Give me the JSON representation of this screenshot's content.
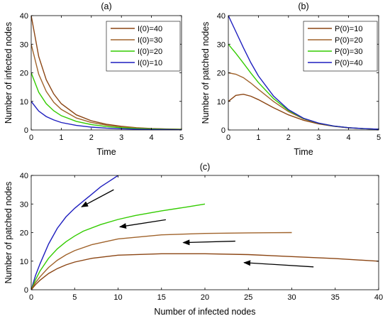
{
  "chart_data": [
    {
      "panel": "(a)",
      "type": "line",
      "xlabel": "Time",
      "ylabel": "Number of infected nodes",
      "xlim": [
        0,
        5
      ],
      "ylim": [
        0,
        40
      ],
      "xticks": [
        "0",
        "1",
        "2",
        "3",
        "4",
        "5"
      ],
      "yticks": [
        "0",
        "10",
        "20",
        "30",
        "40"
      ],
      "legend_position": "top-right",
      "grid": false,
      "series": [
        {
          "name": "I(0)=40",
          "color": "#8B4513",
          "x": [
            0,
            0.25,
            0.5,
            0.75,
            1,
            1.5,
            2,
            2.5,
            3,
            3.5,
            4,
            4.5,
            5
          ],
          "y": [
            40,
            25.7,
            17.6,
            12.6,
            9.2,
            5.3,
            3.2,
            2.0,
            1.3,
            0.8,
            0.5,
            0.35,
            0.25
          ]
        },
        {
          "name": "I(0)=30",
          "color": "#A0632B",
          "x": [
            0,
            0.25,
            0.5,
            0.75,
            1,
            1.5,
            2,
            2.5,
            3,
            3.5,
            4,
            4.5,
            5
          ],
          "y": [
            30,
            19.5,
            13.5,
            9.7,
            7.2,
            4.2,
            2.6,
            1.7,
            1.1,
            0.7,
            0.45,
            0.3,
            0.2
          ]
        },
        {
          "name": "I(0)=20",
          "color": "#33CC00",
          "x": [
            0,
            0.25,
            0.5,
            0.75,
            1,
            1.5,
            2,
            2.5,
            3,
            3.5,
            4,
            4.5,
            5
          ],
          "y": [
            20,
            13.2,
            9.2,
            6.7,
            5.0,
            3.0,
            1.9,
            1.2,
            0.8,
            0.5,
            0.35,
            0.22,
            0.15
          ]
        },
        {
          "name": "I(0)=10",
          "color": "#1F1FBF",
          "x": [
            0,
            0.25,
            0.5,
            0.75,
            1,
            1.5,
            2,
            2.5,
            3,
            3.5,
            4,
            4.5,
            5
          ],
          "y": [
            10,
            6.6,
            4.7,
            3.5,
            2.6,
            1.6,
            1.0,
            0.65,
            0.42,
            0.28,
            0.18,
            0.12,
            0.08
          ]
        }
      ]
    },
    {
      "panel": "(b)",
      "type": "line",
      "xlabel": "Time",
      "ylabel": "Number of patched nodes",
      "xlim": [
        0,
        5
      ],
      "ylim": [
        0,
        40
      ],
      "xticks": [
        "0",
        "1",
        "2",
        "3",
        "4",
        "5"
      ],
      "yticks": [
        "0",
        "10",
        "20",
        "30",
        "40"
      ],
      "legend_position": "top-right",
      "grid": false,
      "series": [
        {
          "name": "P(0)=10",
          "color": "#8B4513",
          "x": [
            0,
            0.25,
            0.5,
            0.75,
            1,
            1.5,
            2,
            2.5,
            3,
            3.5,
            4,
            4.5,
            5
          ],
          "y": [
            10,
            12.1,
            12.5,
            11.8,
            10.6,
            7.8,
            5.3,
            3.4,
            2.1,
            1.3,
            0.75,
            0.45,
            0.25
          ]
        },
        {
          "name": "P(0)=20",
          "color": "#A0632B",
          "x": [
            0,
            0.25,
            0.5,
            0.75,
            1,
            1.5,
            2,
            2.5,
            3,
            3.5,
            4,
            4.5,
            5
          ],
          "y": [
            20,
            19.5,
            18.3,
            16.4,
            14.2,
            10.0,
            6.4,
            3.9,
            2.3,
            1.35,
            0.78,
            0.45,
            0.25
          ]
        },
        {
          "name": "P(0)=30",
          "color": "#33CC00",
          "x": [
            0,
            0.25,
            0.5,
            0.75,
            1,
            1.5,
            2,
            2.5,
            3,
            3.5,
            4,
            4.5,
            5
          ],
          "y": [
            30,
            26.8,
            23.4,
            19.9,
            16.6,
            11.0,
            6.8,
            4.0,
            2.35,
            1.37,
            0.79,
            0.45,
            0.25
          ]
        },
        {
          "name": "P(0)=40",
          "color": "#1F1FBF",
          "x": [
            0,
            0.25,
            0.5,
            0.75,
            1,
            1.5,
            2,
            2.5,
            3,
            3.5,
            4,
            4.5,
            5
          ],
          "y": [
            40,
            34.4,
            28.8,
            23.5,
            18.9,
            11.9,
            7.1,
            4.1,
            2.4,
            1.38,
            0.8,
            0.46,
            0.26
          ]
        }
      ]
    },
    {
      "panel": "(c)",
      "type": "line",
      "xlabel": "Number of infected nodes",
      "ylabel": "Number of patched nodes",
      "xlim": [
        0,
        40
      ],
      "ylim": [
        0,
        40
      ],
      "xticks": [
        "0",
        "5",
        "10",
        "15",
        "20",
        "25",
        "30",
        "35",
        "40"
      ],
      "yticks": [
        "0",
        "10",
        "20",
        "30",
        "40"
      ],
      "grid": false,
      "series": [
        {
          "color": "#1F1FBF",
          "x": [
            0,
            0.5,
            1,
            2,
            3,
            4,
            5,
            6,
            7,
            8,
            9,
            10
          ],
          "y": [
            0,
            5,
            9,
            16,
            21.5,
            25.5,
            28.5,
            31,
            33.5,
            36,
            38,
            40
          ]
        },
        {
          "color": "#33CC00",
          "x": [
            0,
            0.5,
            1,
            2,
            3,
            4,
            5,
            6,
            8,
            10,
            12,
            15,
            18,
            20
          ],
          "y": [
            0,
            3.5,
            6.5,
            11,
            14.3,
            16.8,
            18.8,
            20.5,
            22.8,
            24.6,
            26,
            27.6,
            29,
            30
          ]
        },
        {
          "color": "#A0632B",
          "x": [
            0,
            0.5,
            1,
            2,
            3,
            4,
            5,
            7,
            10,
            15,
            20,
            25,
            30
          ],
          "y": [
            0,
            2.5,
            4.5,
            7.8,
            10.3,
            12.2,
            13.7,
            15.8,
            17.8,
            19.2,
            19.7,
            19.9,
            20
          ]
        },
        {
          "color": "#8B4513",
          "x": [
            0,
            0.5,
            1,
            2,
            3,
            4,
            5,
            7,
            10,
            15,
            20,
            25,
            30,
            35,
            40
          ],
          "y": [
            0,
            1.8,
            3.3,
            5.7,
            7.4,
            8.7,
            9.7,
            11,
            12.1,
            12.6,
            12.6,
            12.3,
            11.6,
            10.9,
            10
          ]
        }
      ],
      "arrows": [
        {
          "from": [
            9.5,
            35
          ],
          "to": [
            5.8,
            29
          ]
        },
        {
          "from": [
            15.5,
            24.5
          ],
          "to": [
            10.2,
            22
          ]
        },
        {
          "from": [
            23.5,
            17
          ],
          "to": [
            17.5,
            16.5
          ]
        },
        {
          "from": [
            32.5,
            8
          ],
          "to": [
            24.5,
            9.5
          ]
        }
      ]
    }
  ]
}
